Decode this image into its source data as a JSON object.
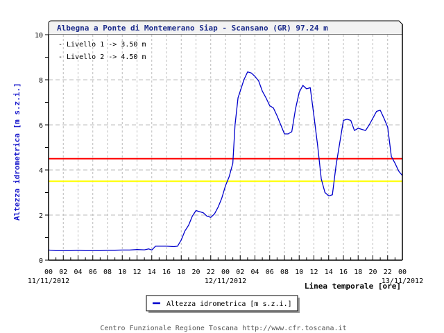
{
  "chart_data": {
    "type": "line",
    "title": "Albegna a Ponte di Montemerano Siap - Scansano (GR) 97.24 m",
    "xlabel": "Linea temporale [ore]",
    "ylabel": "Altezza idrometrica [m s.z.i.]",
    "ylim": [
      0,
      10
    ],
    "xlim_hours": [
      0,
      48
    ],
    "y_ticks": [
      "0",
      "2",
      "4",
      "6",
      "8",
      "10"
    ],
    "x_ticks": [
      "00",
      "02",
      "04",
      "06",
      "08",
      "10",
      "12",
      "14",
      "16",
      "18",
      "20",
      "22",
      "00",
      "02",
      "04",
      "06",
      "08",
      "10",
      "12",
      "14",
      "16",
      "18",
      "20",
      "22",
      "00"
    ],
    "date_labels": [
      {
        "label": "11/11/2012",
        "hour": 0
      },
      {
        "label": "12/11/2012",
        "hour": 24
      },
      {
        "label": "13/11/2012",
        "hour": 48
      }
    ],
    "grid": true,
    "legend_position": "bottom-center",
    "annotations": [
      "- Livello 1 -> 3.50 m",
      "- Livello 2 -> 4.50 m"
    ],
    "thresholds": [
      {
        "name": "Livello 1",
        "value": 3.5,
        "color": "#ffff00"
      },
      {
        "name": "Livello 2",
        "value": 4.5,
        "color": "#ff0000"
      }
    ],
    "series": [
      {
        "name": "Altezza idrometrica [m s.z.i.]",
        "color": "#0000cc",
        "x": [
          0,
          1,
          2,
          3,
          4,
          5,
          6,
          7,
          8,
          9,
          10,
          11,
          12,
          13,
          13.6,
          14,
          14.5,
          15,
          16,
          17,
          17.5,
          18,
          18.5,
          19,
          19.5,
          20,
          20.5,
          21,
          21.5,
          22,
          22.5,
          23,
          23.5,
          24,
          24.5,
          25,
          25.3,
          25.7,
          26,
          26.5,
          27,
          27.5,
          28,
          28.5,
          29,
          29.5,
          30,
          30.5,
          31,
          31.5,
          32,
          32.5,
          33,
          33.5,
          34,
          34.5,
          35,
          35.5,
          36,
          36.5,
          37,
          37.5,
          38,
          38.5,
          39,
          39.5,
          40,
          40.5,
          41,
          41.5,
          42,
          42.5,
          43,
          43.5,
          44,
          44.5,
          45,
          45.5,
          46,
          46.5,
          47,
          47.5,
          48
        ],
        "values": [
          0.45,
          0.42,
          0.42,
          0.42,
          0.44,
          0.42,
          0.42,
          0.42,
          0.44,
          0.44,
          0.45,
          0.45,
          0.47,
          0.46,
          0.5,
          0.45,
          0.62,
          0.62,
          0.62,
          0.6,
          0.62,
          0.9,
          1.3,
          1.55,
          1.95,
          2.2,
          2.15,
          2.1,
          1.95,
          1.9,
          2.05,
          2.35,
          2.75,
          3.3,
          3.7,
          4.3,
          6.0,
          7.2,
          7.5,
          8.0,
          8.35,
          8.3,
          8.15,
          7.95,
          7.5,
          7.2,
          6.85,
          6.75,
          6.4,
          6.0,
          5.6,
          5.6,
          5.7,
          6.7,
          7.45,
          7.75,
          7.6,
          7.65,
          6.4,
          5.1,
          3.6,
          3.0,
          2.85,
          2.9,
          4.2,
          5.2,
          6.2,
          6.25,
          6.2,
          5.75,
          5.85,
          5.8,
          5.75,
          6.0,
          6.3,
          6.6,
          6.65,
          6.3,
          5.9,
          4.6,
          4.3,
          3.95,
          3.75
        ]
      }
    ]
  },
  "legend": {
    "label": "Altezza idrometrica [m s.z.i.]"
  },
  "footer": {
    "text": "Centro Funzionale Regione Toscana http://www.cfr.toscana.it"
  },
  "colors": {
    "series": "#0000cc",
    "level1": "#ffff00",
    "level2": "#ff0000",
    "grid": "#bbbbbb",
    "title": "#1a2a8a",
    "ylabel": "#1a1acc",
    "title_box": "#f2f2f2"
  }
}
